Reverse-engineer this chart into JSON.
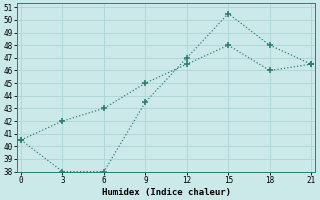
{
  "line1_x": [
    0,
    3,
    6,
    9,
    12,
    15,
    18,
    21
  ],
  "line1_y": [
    40.5,
    42.0,
    43.0,
    45.0,
    46.5,
    48.0,
    46.0,
    46.5
  ],
  "line2_x": [
    0,
    3,
    6,
    9,
    12,
    15,
    18,
    21
  ],
  "line2_y": [
    40.5,
    38.0,
    38.0,
    43.5,
    47.0,
    50.5,
    48.0,
    46.5
  ],
  "line_color": "#2d7d74",
  "bg_color": "#cce9ea",
  "grid_major_color": "#aed4d6",
  "grid_minor_color": "#c4e2e4",
  "xlabel": "Humidex (Indice chaleur)",
  "xlim": [
    -0.3,
    21.3
  ],
  "ylim": [
    38,
    51.3
  ],
  "xticks": [
    0,
    3,
    6,
    9,
    12,
    15,
    18,
    21
  ],
  "yticks": [
    38,
    39,
    40,
    41,
    42,
    43,
    44,
    45,
    46,
    47,
    48,
    49,
    50,
    51
  ],
  "marker": "+"
}
